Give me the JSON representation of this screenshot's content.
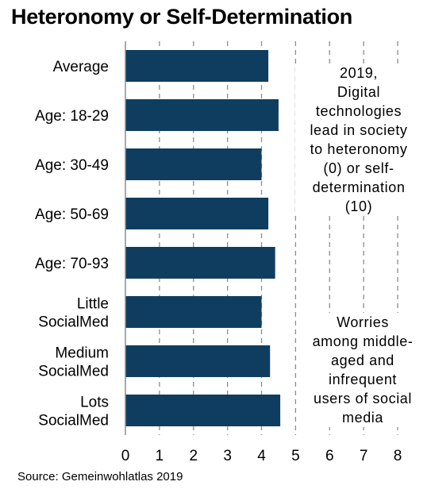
{
  "title": "Heteronomy or Self-Determination",
  "chart_data": {
    "type": "bar",
    "orientation": "horizontal",
    "categories": [
      "Average",
      "Age: 18-29",
      "Age: 30-49",
      "Age: 50-69",
      "Age: 70-93",
      "Little SocialMed",
      "Medium SocialMed",
      "Lots SocialMed"
    ],
    "category_lines": [
      [
        "Average"
      ],
      [
        "Age: 18-29"
      ],
      [
        "Age: 30-49"
      ],
      [
        "Age: 50-69"
      ],
      [
        "Age: 70-93"
      ],
      [
        "Little",
        "SocialMed"
      ],
      [
        "Medium",
        "SocialMed"
      ],
      [
        "Lots",
        "SocialMed"
      ]
    ],
    "values": [
      4.2,
      4.5,
      4.0,
      4.2,
      4.4,
      4.0,
      4.25,
      4.55
    ],
    "xlim": [
      0,
      8
    ],
    "xticks": [
      "0",
      "1",
      "2",
      "3",
      "4",
      "5",
      "6",
      "7",
      "8"
    ],
    "gridlines": "dashed vertical",
    "bar_color": "#0f3d5f",
    "annotations": [
      "2019, Digital technologies lead in society to heteronomy (0) or self-determination (10)",
      "Worries among middle-aged and infrequent users of social media"
    ]
  },
  "notes": {
    "top_lines": [
      "2019,",
      "Digital",
      "technologies",
      "lead in society",
      "to heteronomy",
      "(0) or self-",
      "determination",
      "(10)"
    ],
    "bottom_lines": [
      "Worries",
      "among middle-",
      "aged and",
      "infrequent",
      "users of social",
      "media"
    ]
  },
  "source": "Source: Gemeinwohlatlas 2019"
}
